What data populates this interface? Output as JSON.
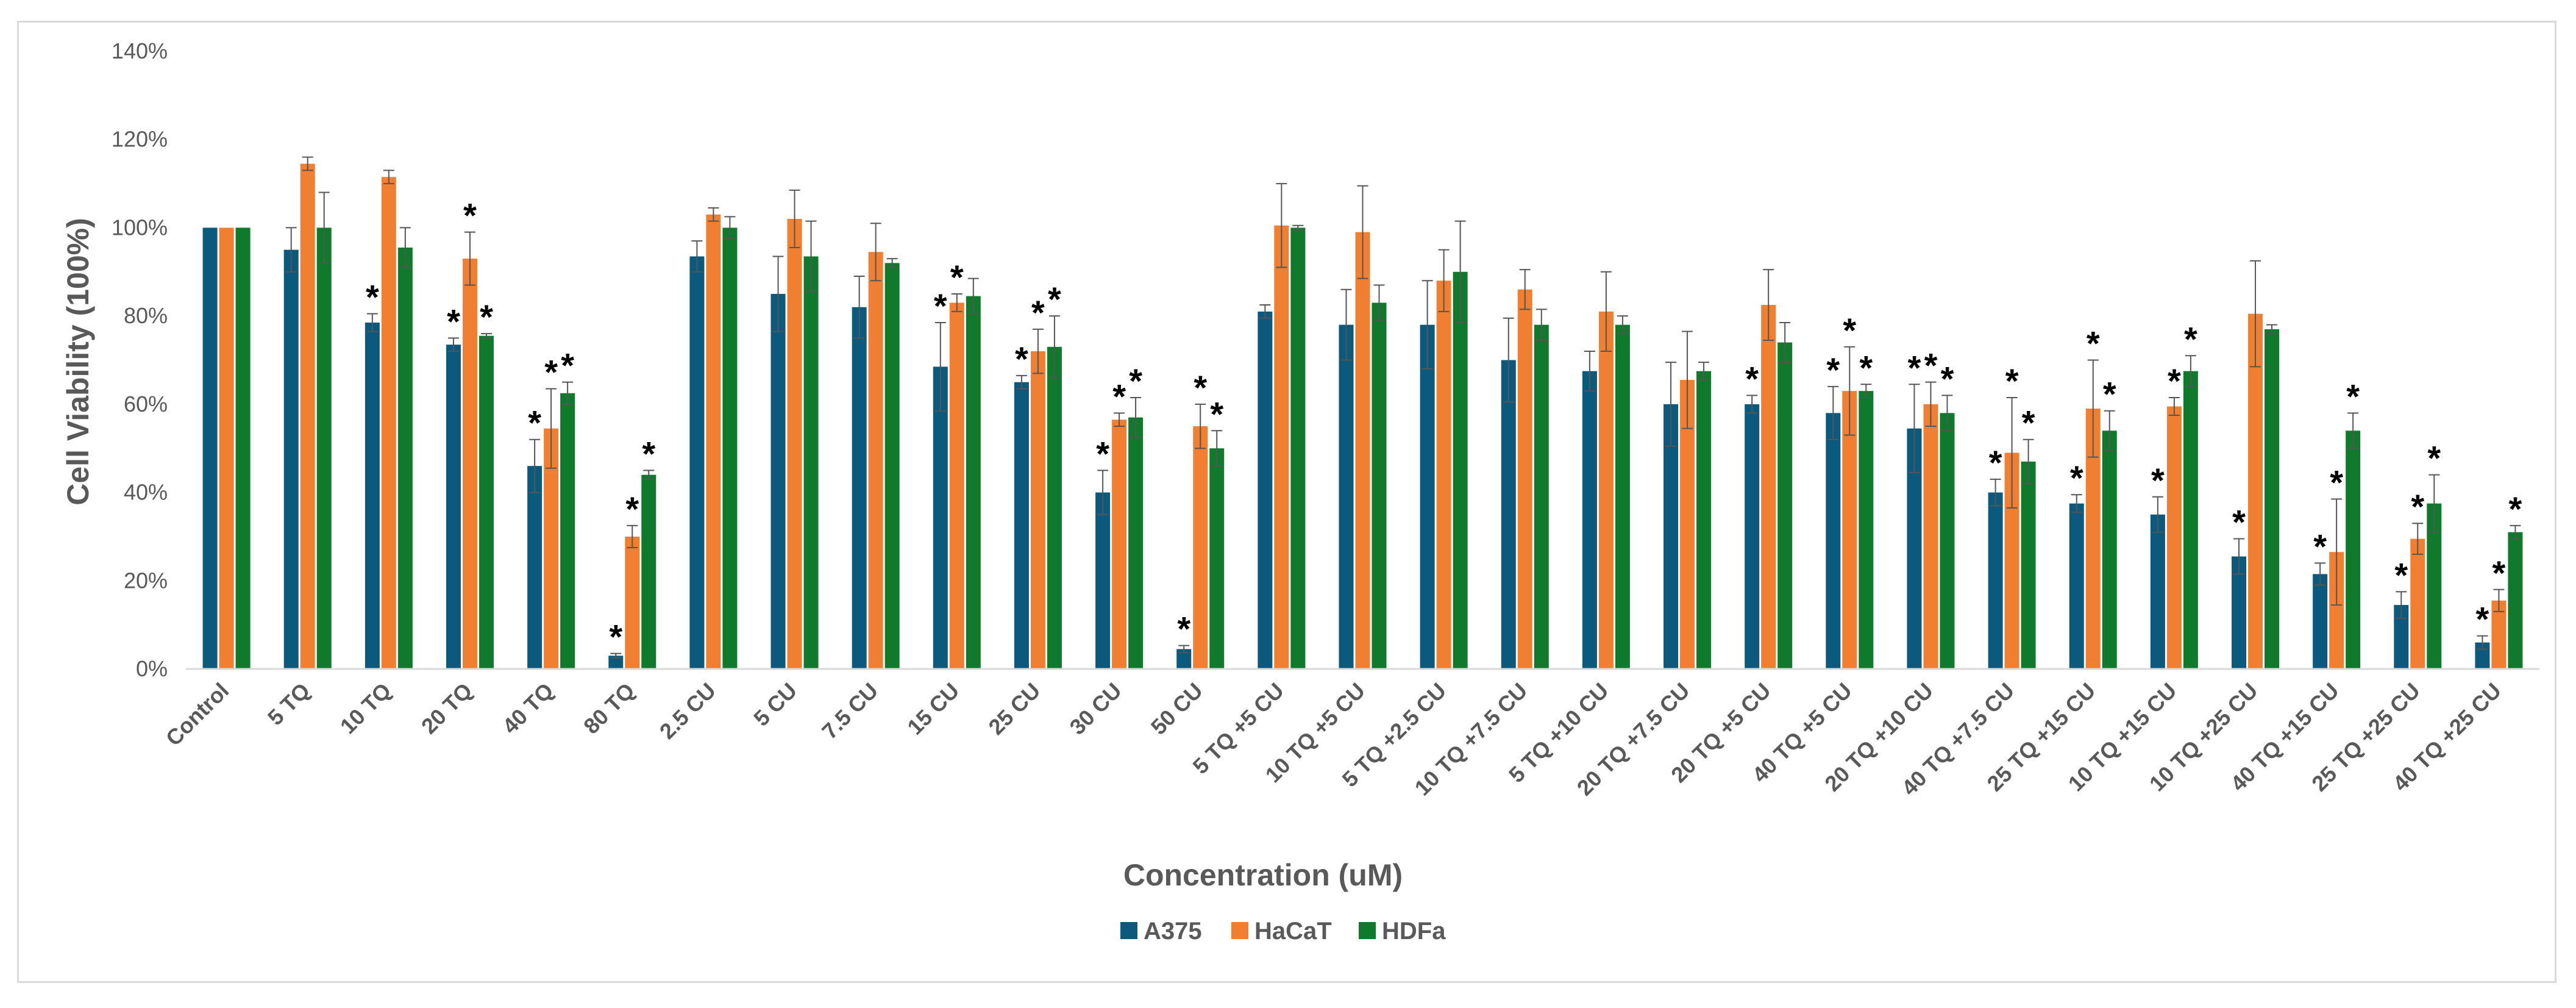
{
  "chart_data": {
    "type": "bar",
    "title": "",
    "xlabel": "Concentration (uM)",
    "ylabel": "Cell Viability (100%)",
    "ylim": [
      0,
      140
    ],
    "yticks": [
      "0%",
      "20%",
      "40%",
      "60%",
      "80%",
      "100%",
      "120%",
      "140%"
    ],
    "grid": false,
    "legend_position": "bottom",
    "significance_marker": "*",
    "categories": [
      "Control",
      "5 TQ",
      "10 TQ",
      "20 TQ",
      "40 TQ",
      "80 TQ",
      "2.5 CU",
      "5 CU",
      "7.5 CU",
      "15 CU",
      "25 CU",
      "30 CU",
      "50 CU",
      "5 TQ +5 CU",
      "10 TQ +5 CU",
      "5 TQ +2.5 CU",
      "10 TQ +7.5 CU",
      "5 TQ +10 CU",
      "20 TQ +7.5 CU",
      "20 TQ +5 CU",
      "40 TQ +5 CU",
      "20 TQ +10 CU",
      "40 TQ +7.5 CU",
      "25 TQ +15 CU",
      "10 TQ +15 CU",
      "10 TQ +25 CU",
      "40 TQ +15 CU",
      "25 TQ +25 CU",
      "40 TQ +25 CU"
    ],
    "series": [
      {
        "name": "A375",
        "color": "#0b5a7d",
        "values": [
          100,
          95,
          78.5,
          73.5,
          46,
          3,
          93.5,
          85,
          82,
          68.5,
          65,
          40,
          4.5,
          81,
          78,
          78,
          70,
          67.5,
          60,
          60,
          58,
          54.5,
          40,
          37.5,
          35,
          25.5,
          21.5,
          14.5,
          6
        ],
        "errors": [
          0,
          5,
          2,
          1.5,
          6,
          0.5,
          3.5,
          8.5,
          7,
          10,
          1.5,
          5,
          0.8,
          1.5,
          8,
          10,
          9.5,
          4.5,
          9.5,
          2,
          6,
          10,
          3,
          2,
          4,
          4,
          2.5,
          3,
          1.5
        ],
        "significant": [
          false,
          false,
          true,
          true,
          true,
          true,
          false,
          false,
          false,
          true,
          true,
          true,
          true,
          false,
          false,
          false,
          false,
          false,
          false,
          true,
          true,
          true,
          true,
          true,
          true,
          true,
          true,
          true,
          true
        ]
      },
      {
        "name": "HaCaT",
        "color": "#f07f32",
        "values": [
          100,
          114.5,
          111.5,
          93,
          54.5,
          30,
          103,
          102,
          94.5,
          83,
          72,
          56.5,
          55,
          100.5,
          99,
          88,
          86,
          81,
          65.5,
          82.5,
          63,
          60,
          49,
          59,
          59.5,
          80.5,
          26.5,
          29.5,
          15.5
        ],
        "errors": [
          0,
          1.5,
          1.5,
          6,
          9,
          2.5,
          1.5,
          6.5,
          6.5,
          2,
          5,
          1.5,
          5,
          9.5,
          10.5,
          7,
          4.5,
          9,
          11,
          8,
          10,
          5,
          12.5,
          11,
          2,
          12,
          12,
          3.5,
          2.5
        ],
        "significant": [
          false,
          false,
          false,
          true,
          true,
          true,
          false,
          false,
          false,
          true,
          true,
          true,
          true,
          false,
          false,
          false,
          false,
          false,
          false,
          false,
          true,
          true,
          true,
          true,
          true,
          false,
          true,
          true,
          true
        ]
      },
      {
        "name": "HDFa",
        "color": "#0f7a2c",
        "values": [
          100,
          100,
          95.5,
          75.5,
          62.5,
          44,
          100,
          93.5,
          92,
          84.5,
          73,
          57,
          50,
          100,
          83,
          90,
          78,
          78,
          67.5,
          74,
          63,
          58,
          47,
          54,
          67.5,
          77,
          54,
          37.5,
          31
        ],
        "errors": [
          0,
          8,
          4.5,
          0.5,
          2.5,
          1,
          2.5,
          8,
          1,
          4,
          7,
          4.5,
          4,
          0.5,
          4,
          11.5,
          3.5,
          2,
          2,
          4.5,
          1.5,
          4,
          5,
          4.5,
          3.5,
          1,
          4,
          6.5,
          1.5
        ],
        "significant": [
          false,
          false,
          false,
          true,
          true,
          true,
          false,
          false,
          false,
          false,
          true,
          true,
          true,
          false,
          false,
          false,
          false,
          false,
          false,
          false,
          true,
          true,
          true,
          true,
          true,
          false,
          true,
          true,
          true
        ]
      }
    ]
  }
}
